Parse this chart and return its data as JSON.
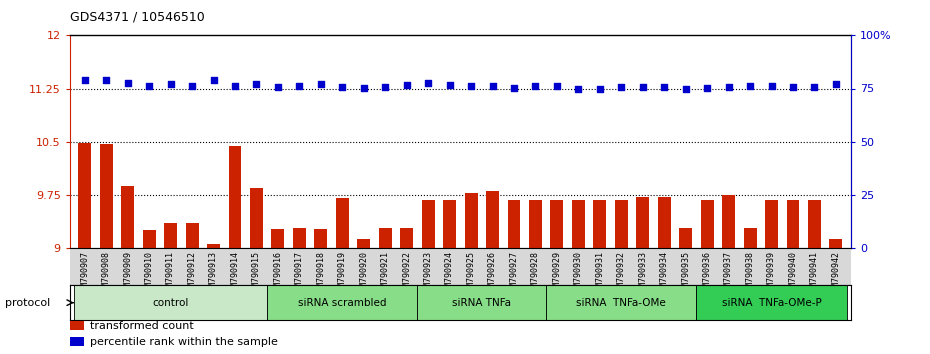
{
  "title": "GDS4371 / 10546510",
  "samples": [
    "GSM790907",
    "GSM790908",
    "GSM790909",
    "GSM790910",
    "GSM790911",
    "GSM790912",
    "GSM790913",
    "GSM790914",
    "GSM790915",
    "GSM790916",
    "GSM790917",
    "GSM790918",
    "GSM790919",
    "GSM790920",
    "GSM790921",
    "GSM790922",
    "GSM790923",
    "GSM790924",
    "GSM790925",
    "GSM790926",
    "GSM790927",
    "GSM790928",
    "GSM790929",
    "GSM790930",
    "GSM790931",
    "GSM790932",
    "GSM790933",
    "GSM790934",
    "GSM790935",
    "GSM790936",
    "GSM790937",
    "GSM790938",
    "GSM790939",
    "GSM790940",
    "GSM790941",
    "GSM790942"
  ],
  "bar_values": [
    10.48,
    10.47,
    9.87,
    9.25,
    9.35,
    9.35,
    9.05,
    10.44,
    9.85,
    9.27,
    9.28,
    9.27,
    9.7,
    9.12,
    9.28,
    9.28,
    9.68,
    9.68,
    9.77,
    9.8,
    9.67,
    9.67,
    9.68,
    9.67,
    9.67,
    9.67,
    9.72,
    9.72,
    9.28,
    9.68,
    9.74,
    9.28,
    9.68,
    9.68,
    9.68,
    9.13
  ],
  "dot_values": [
    11.37,
    11.37,
    11.33,
    11.28,
    11.32,
    11.29,
    11.37,
    11.29,
    11.31,
    11.27,
    11.29,
    11.31,
    11.27,
    11.26,
    11.27,
    11.3,
    11.33,
    11.3,
    11.28,
    11.28,
    11.26,
    11.28,
    11.28,
    11.25,
    11.25,
    11.27,
    11.27,
    11.27,
    11.25,
    11.26,
    11.27,
    11.28,
    11.28,
    11.27,
    11.27,
    11.32
  ],
  "groups": [
    {
      "label": "control",
      "start": 0,
      "end": 9,
      "color": "#c8e8c8"
    },
    {
      "label": "siRNA scrambled",
      "start": 9,
      "end": 16,
      "color": "#88dd88"
    },
    {
      "label": "siRNA TNFa",
      "start": 16,
      "end": 22,
      "color": "#88dd88"
    },
    {
      "label": "siRNA  TNFa-OMe",
      "start": 22,
      "end": 29,
      "color": "#88dd88"
    },
    {
      "label": "siRNA  TNFa-OMe-P",
      "start": 29,
      "end": 36,
      "color": "#33cc55"
    }
  ],
  "ylim_left": [
    9.0,
    12.0
  ],
  "ylim_right": [
    0,
    100
  ],
  "yticks_left": [
    9.0,
    9.75,
    10.5,
    11.25,
    12.0
  ],
  "ytick_labels_left": [
    "9",
    "9.75",
    "10.5",
    "11.25",
    "12"
  ],
  "yticks_right": [
    0,
    25,
    50,
    75,
    100
  ],
  "ytick_labels_right": [
    "0",
    "25",
    "50",
    "75",
    "100%"
  ],
  "hlines": [
    9.75,
    10.5,
    11.25
  ],
  "bar_color": "#cc2200",
  "dot_color": "#0000cc",
  "bar_width": 0.6,
  "legend_items": [
    {
      "label": "transformed count",
      "color": "#cc2200"
    },
    {
      "label": "percentile rank within the sample",
      "color": "#0000cc"
    }
  ],
  "protocol_label": "protocol"
}
